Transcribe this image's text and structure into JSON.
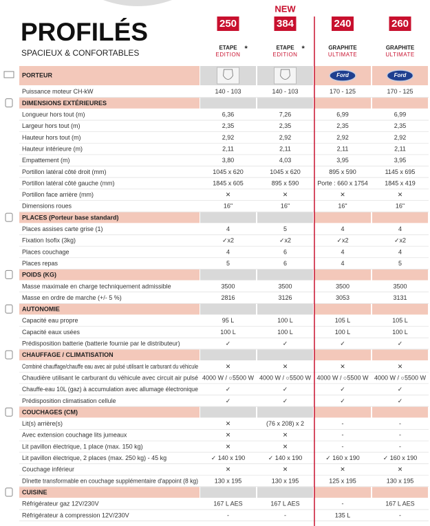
{
  "header": {
    "title": "PROFILÉS",
    "subtitle": "SPACIEUX & CONFORTABLES",
    "models": [
      {
        "number": "250",
        "name": "ETAPE",
        "asterisk": "*",
        "edition": "EDITION"
      },
      {
        "badge": "NEW",
        "number": "384",
        "name": "ETAPE",
        "asterisk": "*",
        "edition": "EDITION"
      },
      {
        "number": "240",
        "name": "GRAPHITE",
        "edition": "ULTIMATE"
      },
      {
        "number": "260",
        "name": "GRAPHITE",
        "edition": "ULTIMATE"
      }
    ]
  },
  "porteur": {
    "section": "PORTEUR",
    "logo_text": "Ford"
  },
  "table": {
    "rows": [
      {
        "label": "Puissance moteur CH-kW",
        "values": [
          "140 - 103",
          "140 - 103",
          "170 - 125",
          "170 - 125"
        ]
      },
      {
        "section": "DIMENSIONS EXTÉRIEURES"
      },
      {
        "label": "Longueur hors tout (m)",
        "values": [
          "6,36",
          "7,26",
          "6,99",
          "6,99"
        ]
      },
      {
        "label": "Largeur hors tout (m)",
        "values": [
          "2,35",
          "2,35",
          "2,35",
          "2,35"
        ]
      },
      {
        "label": "Hauteur hors tout (m)",
        "values": [
          "2,92",
          "2,92",
          "2,92",
          "2,92"
        ]
      },
      {
        "label": "Hauteur intérieure (m)",
        "values": [
          "2,11",
          "2,11",
          "2,11",
          "2,11"
        ]
      },
      {
        "label": "Empattement (m)",
        "values": [
          "3,80",
          "4,03",
          "3,95",
          "3,95"
        ]
      },
      {
        "label": "Portillon latéral côté droit (mm)",
        "values": [
          "1045 x 620",
          "1045 x 620",
          "895 x 590",
          "1145 x 695"
        ]
      },
      {
        "label": "Portillon latéral côté gauche (mm)",
        "values": [
          "1845 x 605",
          "895 x 590",
          "Porte : 660 x 1754",
          "1845 x 419"
        ]
      },
      {
        "label": "Portillon face arrière (mm)",
        "values": [
          "✕",
          "✕",
          "✕",
          "✕"
        ]
      },
      {
        "label": "Dimensions roues",
        "values": [
          "16\"",
          "16\"",
          "16\"",
          "16\""
        ]
      },
      {
        "section": "PLACES (Porteur base standard)"
      },
      {
        "label": "Places assises carte grise (1)",
        "values": [
          "4",
          "5",
          "4",
          "4"
        ]
      },
      {
        "label": "Fixation Isofix (3kg)",
        "values": [
          "✓x2",
          "✓x2",
          "✓x2",
          "✓x2"
        ]
      },
      {
        "label": "Places couchage",
        "values": [
          "4",
          "6",
          "4",
          "4"
        ]
      },
      {
        "label": "Places repas",
        "values": [
          "5",
          "6",
          "4",
          "5"
        ]
      },
      {
        "section": "POIDS (KG)"
      },
      {
        "label": "Masse maximale en charge techniquement admissible",
        "values": [
          "3500",
          "3500",
          "3500",
          "3500"
        ]
      },
      {
        "label": "Masse en ordre de marche (+/- 5 %)",
        "values": [
          "2816",
          "3126",
          "3053",
          "3131"
        ]
      },
      {
        "section": "AUTONOMIE"
      },
      {
        "label": "Capacité eau propre",
        "values": [
          "95 L",
          "100 L",
          "105 L",
          "105 L"
        ]
      },
      {
        "label": "Capacité eaux usées",
        "values": [
          "100 L",
          "100 L",
          "100 L",
          "100 L"
        ]
      },
      {
        "label": "Prédisposition batterie (batterie fournie par le distributeur)",
        "values": [
          "✓",
          "✓",
          "✓",
          "✓"
        ]
      },
      {
        "section": "CHAUFFAGE / CLIMATISATION"
      },
      {
        "label": "Combiné chauffage/chauffe eau avec air pulsé utilisant le carburant du véhicule",
        "values": [
          "✕",
          "✕",
          "✕",
          "✕"
        ]
      },
      {
        "label": "Chaudière utilisant le carburant du véhicule avec circuit air pulsé",
        "values": [
          "4000 W / ○5500 W",
          "4000 W / ○5500 W",
          "4000 W / ○5500 W",
          "4000 W / ○5500 W"
        ]
      },
      {
        "label": "Chauffe-eau 10L (gaz) à accumulation avec allumage électronique",
        "values": [
          "✓",
          "✓",
          "✓",
          "✓"
        ]
      },
      {
        "label": "Prédisposition climatisation cellule",
        "values": [
          "✓",
          "✓",
          "✓",
          "✓"
        ]
      },
      {
        "section": "COUCHAGES (CM)"
      },
      {
        "label": "Lit(s) arrière(s)",
        "values": [
          "✕",
          "(76 x 208) x 2",
          "-",
          "-"
        ]
      },
      {
        "label": "Avec extension couchage lits jumeaux",
        "values": [
          "✕",
          "✕",
          "-",
          "-"
        ]
      },
      {
        "label": "Lit pavillon électrique, 1 place (max. 150 kg)",
        "values": [
          "✕",
          "✕",
          "-",
          "-"
        ]
      },
      {
        "label": "Lit pavillon électrique, 2 places (max. 250 kg) - 45 kg",
        "values": [
          "✓ 140 x 190",
          "✓ 140 x 190",
          "✓ 160 x 190",
          "✓ 160 x 190"
        ]
      },
      {
        "label": "Couchage inférieur",
        "values": [
          "✕",
          "✕",
          "✕",
          "✕"
        ]
      },
      {
        "label": "Dînette transformable en couchage supplémentaire d'appoint (8 kg)",
        "values": [
          "130 x 195",
          "130 x 195",
          "125 x 195",
          "130 x 195"
        ]
      },
      {
        "section": "CUISINE"
      },
      {
        "label": "Réfrigérateur gaz 12V/230V",
        "values": [
          "167 L AES",
          "167 L AES",
          "-",
          "167 L AES"
        ]
      },
      {
        "label": "Réfrigérateur à compression 12V/230V",
        "values": [
          "-",
          "-",
          "135 L",
          "-"
        ]
      }
    ]
  }
}
